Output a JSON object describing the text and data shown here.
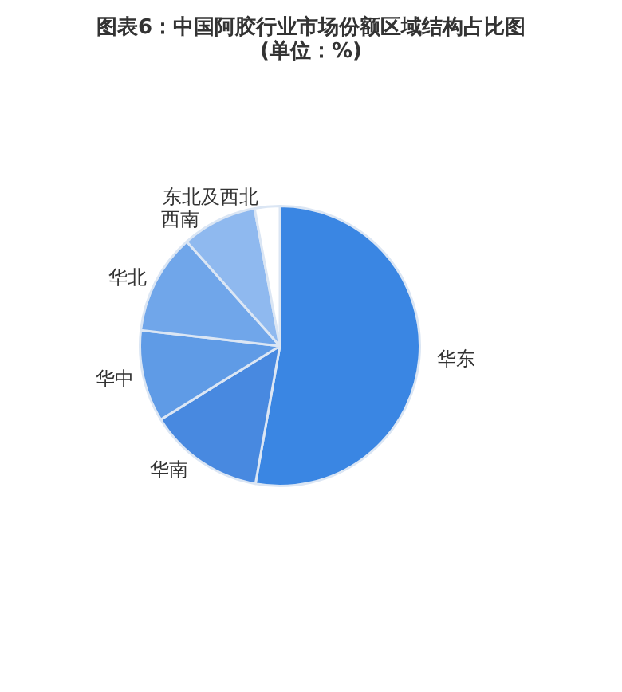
{
  "chart_data": {
    "type": "pie",
    "title": "图表6：中国阿胶行业市场份额区域结构占比图",
    "subtitle": "(单位：%)",
    "categories": [
      "华东",
      "华南",
      "华中",
      "华北",
      "西南",
      "东北及西北"
    ],
    "values": [
      52.8,
      13.4,
      10.6,
      11.6,
      8.7,
      2.9
    ],
    "colors": [
      "#3a86e3",
      "#4889e0",
      "#5f9be6",
      "#70a6ea",
      "#8fb9ef",
      "#ffffff"
    ],
    "legend": false
  }
}
